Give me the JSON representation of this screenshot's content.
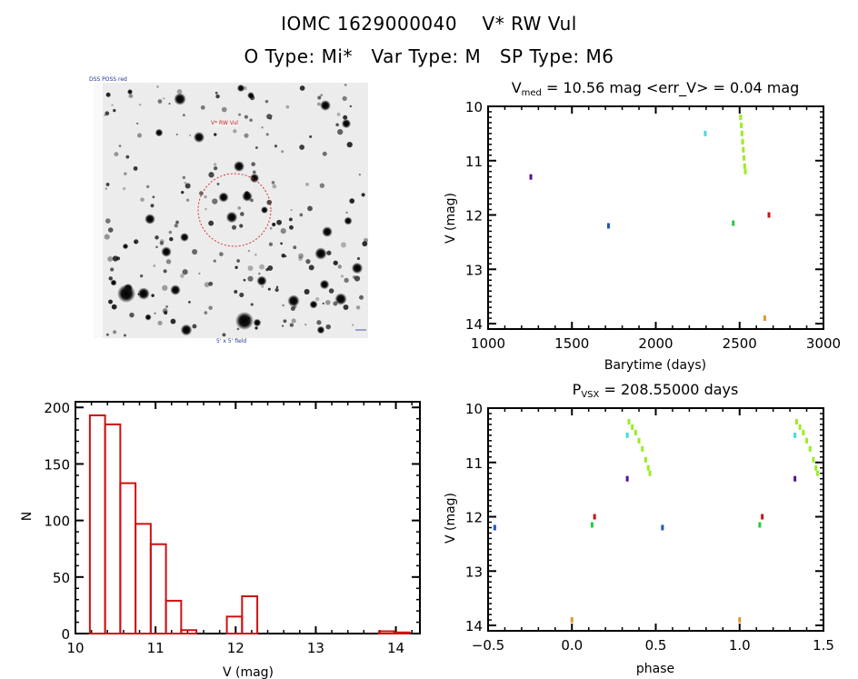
{
  "header": {
    "title": "IOMC 1629000040    V* RW Vul",
    "subtitle": "O Type: Mi*   Var Type: M   SP Type: M6"
  },
  "sky_image": {
    "description": "DSS finder chart, grayscale inverted star field",
    "target_label": "V* RW Vul",
    "top_left_label": "DSS POSS red",
    "bottom_label": "5' x 5' field",
    "circle_color": "#cc2222"
  },
  "colors": {
    "histogram": "#cc1111",
    "axes": "#000000",
    "series_yellowgreen": "#99ee22",
    "series_cyan": "#44dddd",
    "series_purple": "#551199",
    "series_blue": "#2255bb",
    "series_green": "#22cc44",
    "series_red": "#cc1111",
    "series_orange": "#dd9933"
  },
  "chart_data": [
    {
      "id": "lightcurve",
      "type": "scatter",
      "title_main": "V",
      "title_sub": "med",
      "title_rest": " = 10.56 mag <err_V> = 0.04 mag",
      "xlabel": "Barytime (days)",
      "ylabel": "V (mag)",
      "xlim": [
        1000,
        3000
      ],
      "ylim": [
        10,
        14.1
      ],
      "y_inverted": true,
      "xticks": [
        1000,
        1500,
        2000,
        2500,
        3000
      ],
      "yticks": [
        10,
        11,
        12,
        13,
        14
      ],
      "series": [
        {
          "name": "yellowgreen",
          "color": "#99ee22",
          "points": [
            [
              2506,
              10.2
            ],
            [
              2510,
              10.35
            ],
            [
              2514,
              10.5
            ],
            [
              2518,
              10.65
            ],
            [
              2522,
              10.8
            ],
            [
              2526,
              10.95
            ],
            [
              2530,
              11.1
            ],
            [
              2534,
              11.2
            ]
          ]
        },
        {
          "name": "cyan",
          "color": "#44dddd",
          "points": [
            [
              2295,
              10.5
            ]
          ]
        },
        {
          "name": "purple",
          "color": "#551199",
          "points": [
            [
              1255,
              11.3
            ]
          ]
        },
        {
          "name": "blue",
          "color": "#2255bb",
          "points": [
            [
              1718,
              12.2
            ]
          ]
        },
        {
          "name": "green",
          "color": "#22cc44",
          "points": [
            [
              2462,
              12.15
            ]
          ]
        },
        {
          "name": "red",
          "color": "#cc1111",
          "points": [
            [
              2675,
              12.0
            ]
          ]
        },
        {
          "name": "orange",
          "color": "#dd9933",
          "points": [
            [
              2650,
              13.9
            ]
          ]
        }
      ]
    },
    {
      "id": "histogram",
      "type": "bar",
      "title": "",
      "xlabel": "V (mag)",
      "ylabel": "N",
      "xlim": [
        10,
        14.3
      ],
      "ylim": [
        0,
        205
      ],
      "xticks": [
        10,
        11,
        12,
        13,
        14
      ],
      "yticks": [
        0,
        50,
        100,
        150,
        200
      ],
      "bin_width": 0.19,
      "bins": [
        {
          "left": 10.18,
          "count": 193
        },
        {
          "left": 10.37,
          "count": 185
        },
        {
          "left": 10.56,
          "count": 133
        },
        {
          "left": 10.75,
          "count": 97
        },
        {
          "left": 10.94,
          "count": 79
        },
        {
          "left": 11.13,
          "count": 29
        },
        {
          "left": 11.32,
          "count": 3
        },
        {
          "left": 11.51,
          "count": 0
        },
        {
          "left": 11.7,
          "count": 0
        },
        {
          "left": 11.89,
          "count": 15
        },
        {
          "left": 12.08,
          "count": 33
        },
        {
          "left": 12.27,
          "count": 0
        },
        {
          "left": 12.46,
          "count": 0
        },
        {
          "left": 12.65,
          "count": 0
        },
        {
          "left": 12.84,
          "count": 0
        },
        {
          "left": 13.03,
          "count": 0
        },
        {
          "left": 13.22,
          "count": 0
        },
        {
          "left": 13.41,
          "count": 0
        },
        {
          "left": 13.6,
          "count": 0
        },
        {
          "left": 13.79,
          "count": 2
        },
        {
          "left": 13.98,
          "count": 1
        }
      ]
    },
    {
      "id": "phaseplot",
      "type": "scatter",
      "title_main": "P",
      "title_sub": "VSX",
      "title_rest": " = 208.55000 days",
      "xlabel": "phase",
      "ylabel": "V (mag)",
      "xlim": [
        -0.5,
        1.5
      ],
      "ylim": [
        10,
        14.1
      ],
      "y_inverted": true,
      "xticks": [
        -0.5,
        0.0,
        0.5,
        1.0,
        1.5
      ],
      "xtick_labels": [
        "−0.5",
        "0.0",
        "0.5",
        "1.0",
        "1.5"
      ],
      "yticks": [
        10,
        11,
        12,
        13,
        14
      ],
      "series": [
        {
          "name": "yellowgreen",
          "color": "#99ee22",
          "points": [
            [
              0.34,
              10.25
            ],
            [
              0.36,
              10.35
            ],
            [
              0.38,
              10.45
            ],
            [
              0.4,
              10.6
            ],
            [
              0.42,
              10.75
            ],
            [
              0.44,
              10.95
            ],
            [
              0.455,
              11.1
            ],
            [
              0.465,
              11.2
            ],
            [
              1.34,
              10.25
            ],
            [
              1.36,
              10.35
            ],
            [
              1.38,
              10.45
            ],
            [
              1.4,
              10.6
            ],
            [
              1.42,
              10.75
            ],
            [
              1.44,
              10.95
            ],
            [
              1.455,
              11.1
            ],
            [
              1.465,
              11.2
            ]
          ]
        },
        {
          "name": "cyan",
          "color": "#44dddd",
          "points": [
            [
              0.33,
              10.5
            ],
            [
              1.33,
              10.5
            ]
          ]
        },
        {
          "name": "purple",
          "color": "#551199",
          "points": [
            [
              0.33,
              11.3
            ],
            [
              1.33,
              11.3
            ]
          ]
        },
        {
          "name": "blue",
          "color": "#2255bb",
          "points": [
            [
              -0.46,
              12.2
            ],
            [
              0.54,
              12.2
            ]
          ]
        },
        {
          "name": "green",
          "color": "#22cc44",
          "points": [
            [
              0.12,
              12.15
            ],
            [
              1.12,
              12.15
            ]
          ]
        },
        {
          "name": "red",
          "color": "#cc1111",
          "points": [
            [
              0.135,
              12.0
            ],
            [
              1.135,
              12.0
            ]
          ]
        },
        {
          "name": "orange",
          "color": "#dd9933",
          "points": [
            [
              0.0,
              13.9
            ],
            [
              1.0,
              13.9
            ]
          ]
        }
      ]
    }
  ]
}
